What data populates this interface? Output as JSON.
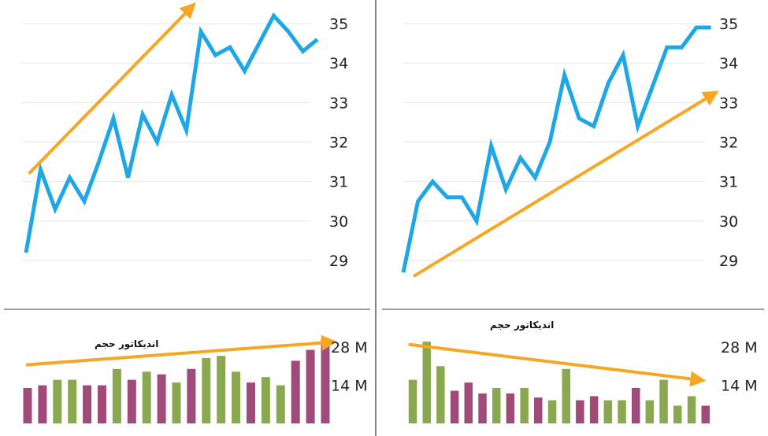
{
  "colors": {
    "price_line": "#1ea7e6",
    "trend_arrow": "#f5a623",
    "vol_green": "#8aa84f",
    "vol_purple": "#a04a7a",
    "grid": "#e6e6e6",
    "axis": "#666666"
  },
  "chart_data": [
    {
      "type": "line",
      "title": "",
      "xlabel": "",
      "ylabel": "",
      "ylim": [
        28,
        35.4
      ],
      "y_ticks": [
        "35",
        "34",
        "33",
        "32",
        "31",
        "30",
        "29"
      ],
      "y_tick_values": [
        35,
        34,
        33,
        32,
        31,
        30,
        29
      ],
      "grid": true,
      "series": [
        {
          "values": [
            29.2,
            31.3,
            30.3,
            31.1,
            30.5,
            31.5,
            32.6,
            31.1,
            32.7,
            32.0,
            33.2,
            32.3,
            34.8,
            34.2,
            34.4,
            33.8,
            34.5,
            35.2,
            34.8,
            34.3,
            34.6
          ]
        }
      ],
      "trend_arrow": {
        "from": [
          0.2,
          31.2
        ],
        "to": [
          11.3,
          35.4
        ]
      }
    },
    {
      "type": "bar",
      "title": "",
      "annotation": "اندیکاتور حجم",
      "y_ticks": [
        "28 M",
        "14 M"
      ],
      "y_tick_values": [
        28,
        14
      ],
      "ylim": [
        0,
        30
      ],
      "values": [
        13,
        14,
        16,
        16,
        14,
        14,
        20,
        16,
        19,
        18,
        15,
        20,
        24,
        24.8,
        19,
        15,
        17,
        14,
        23,
        27,
        31
      ],
      "colors": [
        "purple",
        "purple",
        "green",
        "green",
        "purple",
        "purple",
        "green",
        "purple",
        "green",
        "purple",
        "green",
        "purple",
        "green",
        "green",
        "green",
        "purple",
        "green",
        "green",
        "purple",
        "purple",
        "purple"
      ],
      "trend_arrow": {
        "from": [
          -0.1,
          21.5
        ],
        "to": [
          20.3,
          29.8
        ]
      }
    },
    {
      "type": "line",
      "title": "",
      "xlabel": "",
      "ylabel": "",
      "ylim": [
        28,
        35.4
      ],
      "y_ticks": [
        "35",
        "34",
        "33",
        "32",
        "31",
        "30",
        "29"
      ],
      "y_tick_values": [
        35,
        34,
        33,
        32,
        31,
        30,
        29
      ],
      "grid": true,
      "series": [
        {
          "values": [
            28.7,
            30.5,
            31.0,
            30.6,
            30.6,
            30.0,
            31.9,
            30.8,
            31.6,
            31.1,
            32.0,
            33.7,
            32.6,
            32.4,
            33.5,
            34.2,
            32.4,
            33.4,
            34.4,
            34.4,
            34.9,
            34.9
          ]
        }
      ],
      "trend_arrow": {
        "from": [
          0.7,
          28.6
        ],
        "to": [
          21.1,
          33.2
        ]
      }
    },
    {
      "type": "bar",
      "title": "",
      "annotation": "اندیکاتور حجم",
      "y_ticks": [
        "28 M",
        "14 M"
      ],
      "y_tick_values": [
        28,
        14
      ],
      "ylim": [
        0,
        30
      ],
      "values": [
        16,
        30,
        21,
        12,
        15,
        11,
        13,
        11,
        13,
        9.5,
        8.5,
        20,
        8.5,
        10,
        8.5,
        8.5,
        13,
        8.5,
        16,
        6.5,
        10,
        6.5
      ],
      "colors": [
        "green",
        "green",
        "green",
        "purple",
        "purple",
        "purple",
        "green",
        "purple",
        "green",
        "purple",
        "green",
        "green",
        "purple",
        "purple",
        "green",
        "green",
        "purple",
        "green",
        "green",
        "green",
        "green",
        "purple"
      ],
      "trend_arrow": {
        "from": [
          -0.3,
          29.0
        ],
        "to": [
          20.5,
          16.0
        ]
      }
    }
  ]
}
